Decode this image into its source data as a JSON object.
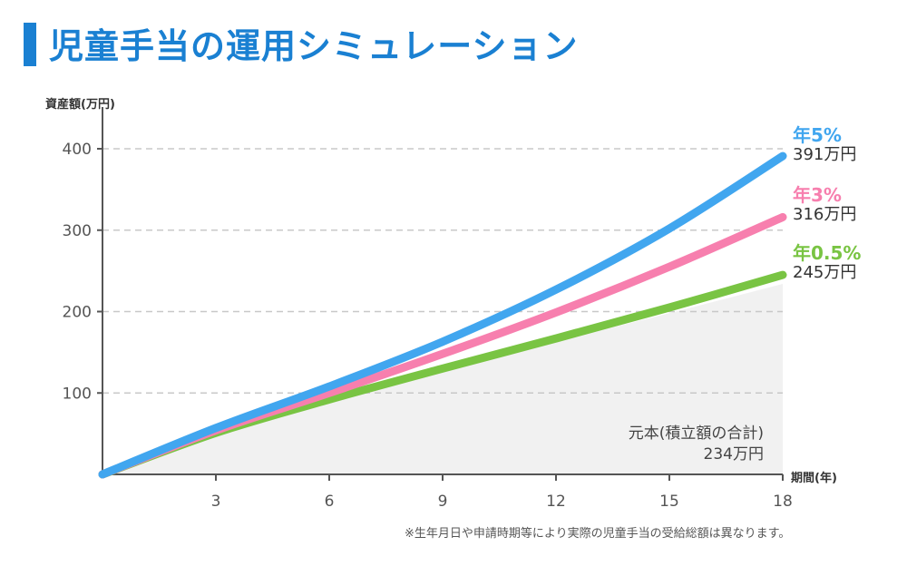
{
  "title": "児童手当の運用シミュレーション",
  "footnote": "※生年月日や申請時期等により実際の児童手当の受給総額は異なります。",
  "colors": {
    "title": "#1a80d2",
    "five": "#41a6ef",
    "three": "#f77fae",
    "half": "#79c443",
    "principal_fill": "#f1f1f1",
    "grid": "#c8c8c8"
  },
  "chart_data": {
    "type": "line",
    "ylabel": "資産額(万円)",
    "xlabel": "期間(年)",
    "xlim": [
      0,
      18
    ],
    "ylim": [
      0,
      400
    ],
    "xticks": [
      3,
      6,
      9,
      12,
      15,
      18
    ],
    "yticks": [
      100,
      200,
      300,
      400
    ],
    "grid": "horizontal dashed",
    "series": [
      {
        "key": "five",
        "name": "年5%",
        "end_label": "391万円",
        "x": [
          0,
          3,
          6,
          9,
          12,
          15,
          18
        ],
        "y": [
          0,
          57,
          108,
          163,
          227,
          302,
          391
        ]
      },
      {
        "key": "three",
        "name": "年3%",
        "end_label": "316万円",
        "x": [
          0,
          3,
          6,
          9,
          12,
          15,
          18
        ],
        "y": [
          0,
          54,
          100,
          148,
          199,
          255,
          316
        ]
      },
      {
        "key": "half",
        "name": "年0.5%",
        "end_label": "245万円",
        "x": [
          0,
          3,
          6,
          9,
          12,
          15,
          18
        ],
        "y": [
          0,
          51,
          92,
          130,
          167,
          205,
          245
        ]
      }
    ],
    "principal": {
      "label_line1": "元本(積立額の合計)",
      "label_line2": "234万円",
      "x": [
        0,
        3,
        6,
        9,
        12,
        15,
        18
      ],
      "y": [
        0,
        50,
        90,
        127,
        163,
        198,
        234
      ]
    }
  }
}
